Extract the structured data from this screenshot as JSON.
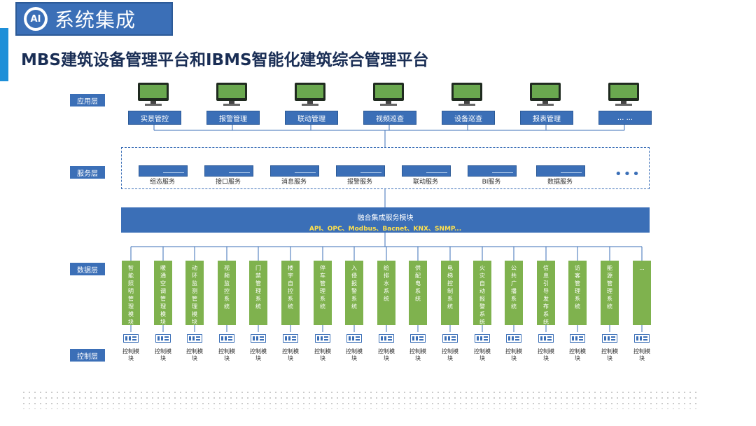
{
  "header": {
    "badge": "AI",
    "title": "系统集成"
  },
  "page_title": "MBS建筑设备管理平台和IBMS智能化建筑综合管理平台",
  "layers": {
    "app": "应用层",
    "service": "服务层",
    "data": "数据层",
    "control": "控制层"
  },
  "app_items": [
    "实景管控",
    "报警管理",
    "联动管理",
    "视频巡查",
    "设备巡查",
    "报表管理",
    "... ..."
  ],
  "service_items": [
    "组态服务",
    "接口服务",
    "消息服务",
    "报警服务",
    "联动服务",
    "BI服务",
    "数据服务"
  ],
  "service_more": "•••",
  "fusion": {
    "title": "融合集成服务模块",
    "protocols": "API、OPC、Modbus、Bacnet、KNX、SNMP..."
  },
  "data_items": [
    "智能照明管理模块",
    "暖通空调管理模块",
    "动环监测管理模块",
    "视频监控系统",
    "门禁管理系统",
    "楼宇自控系统",
    "停车管理系统",
    "入侵报警系统",
    "给排水系统",
    "供配电系统",
    "电梯控制系统",
    "火灾自动报警系统",
    "公共广播系统",
    "信息引导发布系统",
    "访客管理系统",
    "能源管理系统",
    "..."
  ],
  "control_label": "控制模块",
  "colors": {
    "blue": "#3b6fb7",
    "green": "#7fb24e",
    "accent_bar": "#1e8fd8",
    "protocol_text": "#ffe14d"
  }
}
